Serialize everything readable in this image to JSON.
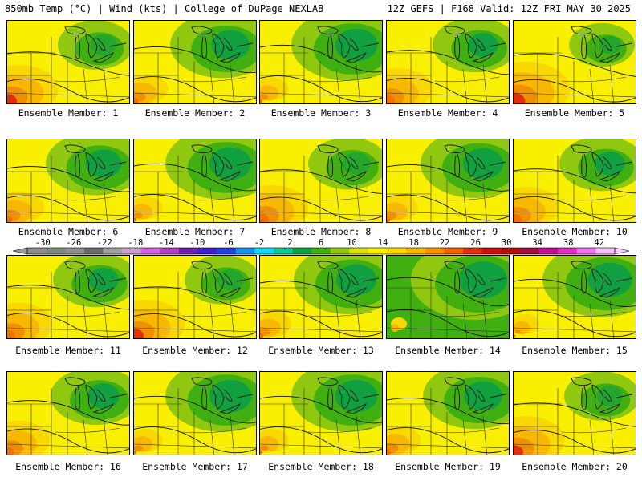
{
  "header": {
    "left": "850mb Temp (°C) | Wind (kts) | College of DuPage NEXLAB",
    "right": "12Z GEFS | F168 Valid: 12Z FRI MAY 30 2025"
  },
  "member_label_prefix": "Ensemble Member: ",
  "colorbar": {
    "tick_labels": [
      "-30",
      "-26",
      "-22",
      "-18",
      "-14",
      "-10",
      "-6",
      "-2",
      "2",
      "6",
      "10",
      "14",
      "18",
      "22",
      "26",
      "30",
      "34",
      "38",
      "42"
    ],
    "colors": [
      "#8c8c8c",
      "#7a8a7a",
      "#909090",
      "#6a6a6a",
      "#a0a0a0",
      "#c8a0c8",
      "#d860e0",
      "#b040c0",
      "#7020b0",
      "#4020c8",
      "#2040e0",
      "#1890f0",
      "#10d8f0",
      "#10c890",
      "#10a040",
      "#40b010",
      "#90c810",
      "#d8e010",
      "#f8f000",
      "#f8d800",
      "#f8b800",
      "#f89000",
      "#f06000",
      "#e03010",
      "#d01010",
      "#b01010",
      "#a01040",
      "#c01090",
      "#e030c0",
      "#f070f0",
      "#f8c0f8"
    ]
  },
  "members": [
    {
      "id": 1,
      "warmth": 0.55
    },
    {
      "id": 2,
      "warmth": 0.25
    },
    {
      "id": 3,
      "warmth": 0.15
    },
    {
      "id": 4,
      "warmth": 0.45
    },
    {
      "id": 5,
      "warmth": 0.65
    },
    {
      "id": 6,
      "warmth": 0.3
    },
    {
      "id": 7,
      "warmth": 0.15
    },
    {
      "id": 8,
      "warmth": 0.5
    },
    {
      "id": 9,
      "warmth": 0.2
    },
    {
      "id": 10,
      "warmth": 0.45
    },
    {
      "id": 11,
      "warmth": 0.45
    },
    {
      "id": 12,
      "warmth": 0.55
    },
    {
      "id": 13,
      "warmth": 0.2
    },
    {
      "id": 14,
      "warmth": 0.0
    },
    {
      "id": 15,
      "warmth": 0.1
    },
    {
      "id": 16,
      "warmth": 0.4
    },
    {
      "id": 17,
      "warmth": 0.15
    },
    {
      "id": 18,
      "warmth": 0.15
    },
    {
      "id": 19,
      "warmth": 0.25
    },
    {
      "id": 20,
      "warmth": 0.55
    }
  ]
}
